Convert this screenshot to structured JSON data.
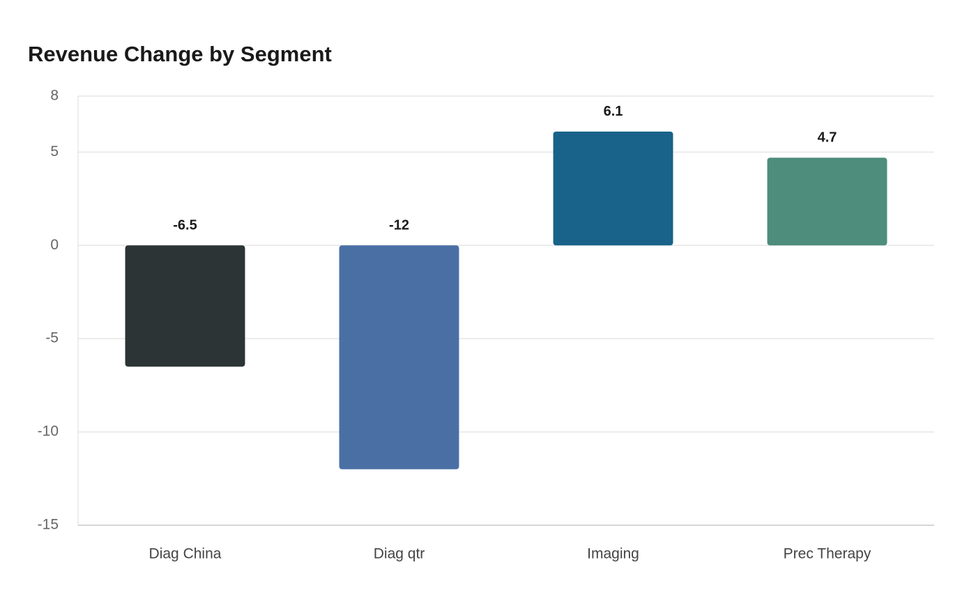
{
  "chart_data": {
    "type": "bar",
    "title": "Revenue Change by Segment",
    "categories": [
      "Diag China",
      "Diag qtr",
      "Imaging",
      "Prec Therapy"
    ],
    "values": [
      -6.5,
      -12,
      6.1,
      4.7
    ],
    "colors": [
      "#2d3436",
      "#4a6fa5",
      "#196289",
      "#4e8d7c"
    ],
    "ylim": [
      -15,
      8
    ],
    "yticks": [
      -15,
      -10,
      -5,
      0,
      5,
      8
    ],
    "grid": true
  }
}
